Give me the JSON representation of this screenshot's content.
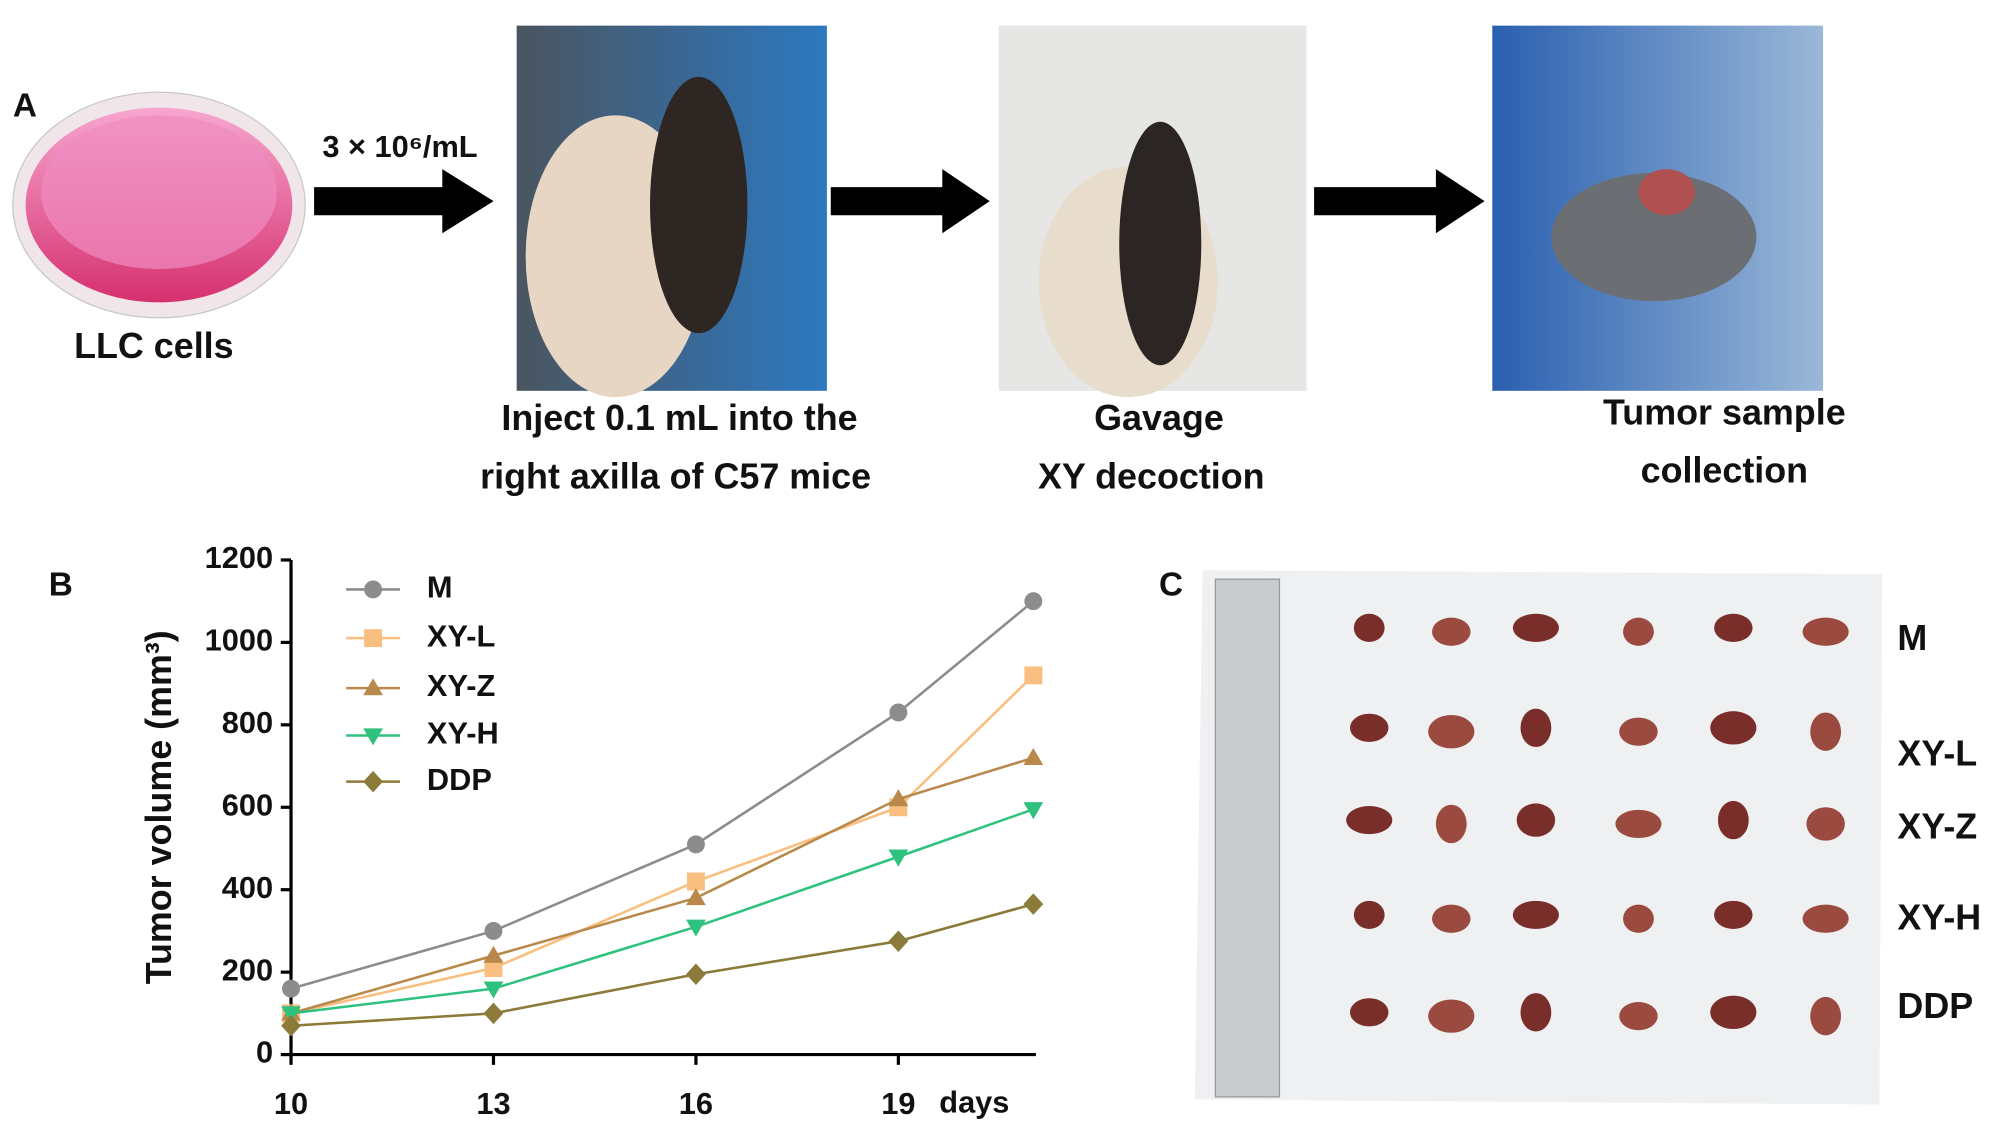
{
  "panel_a": {
    "label": "A",
    "concentration": "3 × 10⁶/mL",
    "steps": [
      {
        "lines": [
          "LLC cells"
        ]
      },
      {
        "lines": [
          "Inject 0.1 mL into the",
          "right axilla of C57 mice"
        ]
      },
      {
        "lines": [
          "Gavage",
          "XY decoction"
        ]
      },
      {
        "lines": [
          "Tumor sample",
          "collection"
        ]
      }
    ]
  },
  "panel_b_label": "B",
  "chart_data": {
    "type": "line",
    "y_label": "Tumor volume (mm³)",
    "x_label": "days",
    "x": [
      10,
      13,
      16,
      19,
      21
    ],
    "xlim": [
      10,
      21
    ],
    "xticks": [
      10,
      13,
      16,
      19
    ],
    "ylim": [
      0,
      1200
    ],
    "yticks": [
      0,
      200,
      400,
      600,
      800,
      1000,
      1200
    ],
    "series": [
      {
        "name": "M",
        "color": "#8c8c8c",
        "marker": "circle",
        "values": [
          160,
          300,
          510,
          830,
          1100
        ]
      },
      {
        "name": "XY-L",
        "color": "#f9bf80",
        "marker": "square",
        "values": [
          100,
          210,
          420,
          600,
          920
        ]
      },
      {
        "name": "XY-Z",
        "color": "#b8894a",
        "marker": "triangle-up",
        "values": [
          100,
          240,
          380,
          620,
          720
        ]
      },
      {
        "name": "XY-H",
        "color": "#2ec27e",
        "marker": "triangle-down",
        "values": [
          100,
          160,
          310,
          480,
          595
        ]
      },
      {
        "name": "DDP",
        "color": "#8b7a3a",
        "marker": "diamond",
        "values": [
          70,
          100,
          195,
          275,
          365
        ]
      }
    ]
  },
  "panel_c": {
    "label": "C",
    "rows": [
      "M",
      "XY-L",
      "XY-Z",
      "XY-H",
      "DDP"
    ]
  }
}
